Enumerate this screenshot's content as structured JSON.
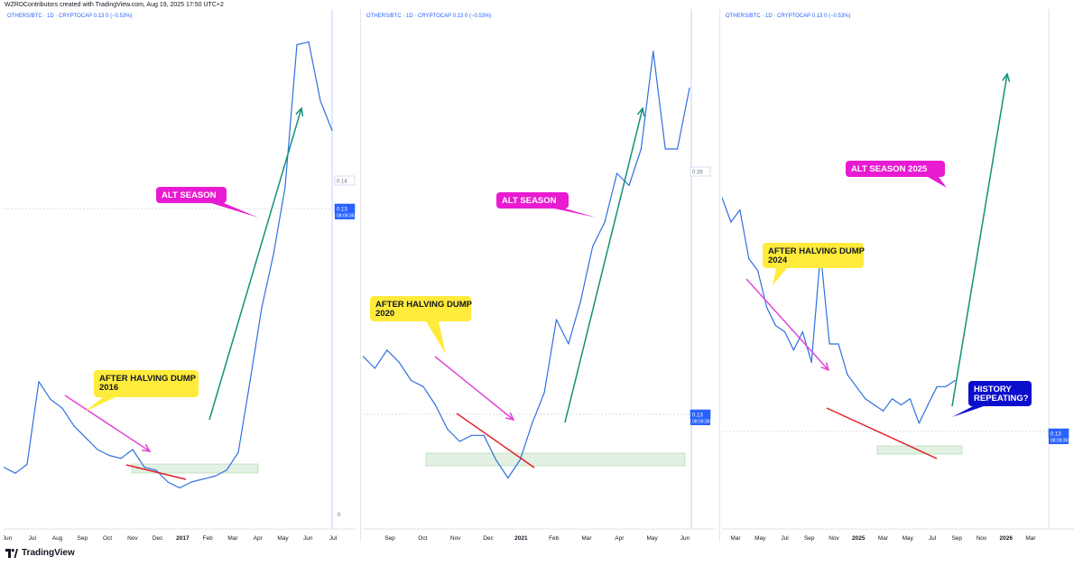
{
  "credit": "WZRDContributors created with TradingView.com, Aug 19, 2025 17:50 UTC+2",
  "brand": "TradingView",
  "colors": {
    "price_line": "#2f6fe0",
    "trend_arrow": "#11917a",
    "dump_arrow": "#e046d9",
    "support_line": "#e0202a",
    "callout_yellow": "#ffeb3b",
    "callout_magenta": "#e91bd2",
    "callout_blue": "#0d0dcc",
    "zone_fill": "#cfe8cf",
    "axis_text": "#131722",
    "price_label_blue": "#2962ff"
  },
  "chart_data": [
    {
      "type": "line",
      "header": "OTHERS/BTC · 1D · CRYPTOCAP  0.13  0 (−0.53%)",
      "x_ticks": [
        "Jun",
        "Jul",
        "Aug",
        "Sep",
        "Oct",
        "Nov",
        "Dec",
        "2017",
        "Feb",
        "Mar",
        "Apr",
        "May",
        "Jun",
        "Jul"
      ],
      "price_labels": {
        "top": "0.14",
        "current": "0.13",
        "timer": "08:09:36",
        "bottom": "0"
      },
      "ylim": [
        0,
        0.165
      ],
      "series": [
        {
          "values": [
            0.016,
            0.014,
            0.017,
            0.045,
            0.039,
            0.036,
            0.03,
            0.026,
            0.022,
            0.02,
            0.019,
            0.022,
            0.016,
            0.015,
            0.011,
            0.009,
            0.011,
            0.012,
            0.013,
            0.015,
            0.021,
            0.045,
            0.07,
            0.088,
            0.111,
            0.159,
            0.16,
            0.14,
            0.13
          ]
        }
      ],
      "annotations": [
        {
          "kind": "callout",
          "style": "yellow",
          "lines": [
            "AFTER HALVING DUMP",
            "2016"
          ]
        },
        {
          "kind": "callout",
          "style": "magenta",
          "lines": [
            "ALT SEASON"
          ]
        }
      ]
    },
    {
      "type": "line",
      "header": "OTHERS/BTC · 1D · CRYPTOCAP  0.13  0 (−0.53%)",
      "x_ticks": [
        "Sep",
        "Oct",
        "Nov",
        "Dec",
        "2021",
        "Feb",
        "Mar",
        "Apr",
        "May",
        "Jun"
      ],
      "price_labels": {
        "top": "0.35",
        "current": "0.13",
        "timer": "08:09:36"
      },
      "ylim": [
        0,
        0.4
      ],
      "series": [
        {
          "values": [
            0.13,
            0.12,
            0.135,
            0.125,
            0.11,
            0.105,
            0.09,
            0.07,
            0.06,
            0.065,
            0.065,
            0.045,
            0.03,
            0.045,
            0.075,
            0.1,
            0.16,
            0.14,
            0.175,
            0.22,
            0.24,
            0.28,
            0.27,
            0.3,
            0.38,
            0.3,
            0.3,
            0.35
          ]
        }
      ],
      "annotations": [
        {
          "kind": "callout",
          "style": "yellow",
          "lines": [
            "AFTER HALVING DUMP",
            "2020"
          ]
        },
        {
          "kind": "callout",
          "style": "magenta",
          "lines": [
            "ALT SEASON"
          ]
        }
      ]
    },
    {
      "type": "line",
      "header": "OTHERS/BTC · 1D · CRYPTOCAP  0.13  0 (−0.53%)",
      "x_ticks": [
        "Mar",
        "May",
        "Jul",
        "Sep",
        "Nov",
        "2025",
        "Mar",
        "May",
        "Jul",
        "Sep",
        "Nov",
        "2026",
        "Mar"
      ],
      "price_labels": {
        "current": "0.13",
        "timer": "08:09:36"
      },
      "ylim": [
        0,
        0.4
      ],
      "series": [
        {
          "values": [
            0.26,
            0.24,
            0.25,
            0.21,
            0.2,
            0.17,
            0.155,
            0.15,
            0.135,
            0.15,
            0.125,
            0.215,
            0.14,
            0.14,
            0.115,
            0.105,
            0.095,
            0.09,
            0.085,
            0.095,
            0.09,
            0.095,
            0.075,
            0.09,
            0.105,
            0.105,
            0.11
          ]
        }
      ],
      "annotations": [
        {
          "kind": "callout",
          "style": "yellow",
          "lines": [
            "AFTER HALVING DUMP",
            "2024"
          ]
        },
        {
          "kind": "callout",
          "style": "magenta",
          "lines": [
            "ALT SEASON 2025"
          ]
        },
        {
          "kind": "callout",
          "style": "blue",
          "lines": [
            "HISTORY",
            "REPEATING?"
          ]
        }
      ]
    }
  ]
}
